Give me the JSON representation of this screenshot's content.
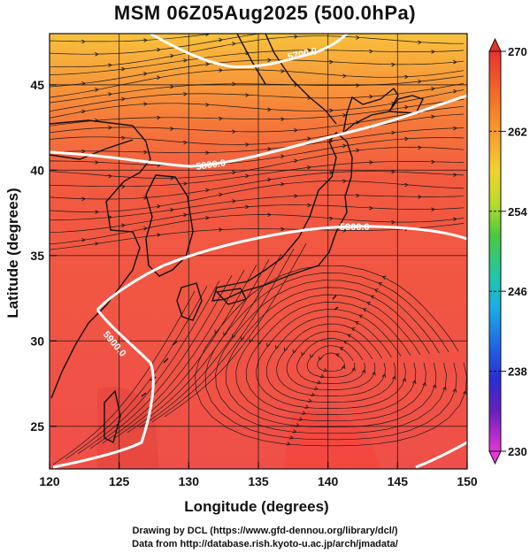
{
  "title": "MSM 06Z05Aug2025 (500.0hPa)",
  "map": {
    "xlabel": "Longitude (degrees)",
    "ylabel": "Latitude  (degrees)",
    "lon_range": [
      120,
      150
    ],
    "lat_range": [
      22.5,
      48
    ],
    "lon_ticks": [
      "120",
      "125",
      "130",
      "135",
      "140",
      "145",
      "150"
    ],
    "lat_ticks": [
      "25",
      "30",
      "35",
      "40",
      "45"
    ],
    "field": "temperature shading with geopotential height contours and wind streamlines",
    "contours": [
      {
        "label": "5700.0",
        "color": "#ffffff"
      },
      {
        "label": "5800.0",
        "color": "#ffffff"
      },
      {
        "label": "5900.0",
        "color": "#ffffff"
      },
      {
        "label": "5900.0",
        "color": "#ffffff"
      }
    ],
    "colors": {
      "warm_red": "#f0504a",
      "orange": "#f5963a",
      "yellow_orange": "#f8c23c",
      "coast": "#111111",
      "streamline": "#1a1a1a"
    }
  },
  "colorbar": {
    "ticks": [
      "270",
      "262",
      "254",
      "246",
      "238",
      "230"
    ],
    "colors": [
      "#e8332b",
      "#f46a2a",
      "#f79a2e",
      "#f2cf31",
      "#d8e02e",
      "#8fd62c",
      "#34c44a",
      "#23c6a3",
      "#1ab4e2",
      "#2270e8",
      "#2a3ed0",
      "#3a1fb8",
      "#8a1fc0",
      "#c41fc0",
      "#ea36d8"
    ]
  },
  "credits": {
    "line1": "Drawing by DCL (https://www.gfd-dennou.org/library/dcl/)",
    "line2": "Data from http://database.rish.kyoto-u.ac.jp/arch/jmadata/"
  }
}
